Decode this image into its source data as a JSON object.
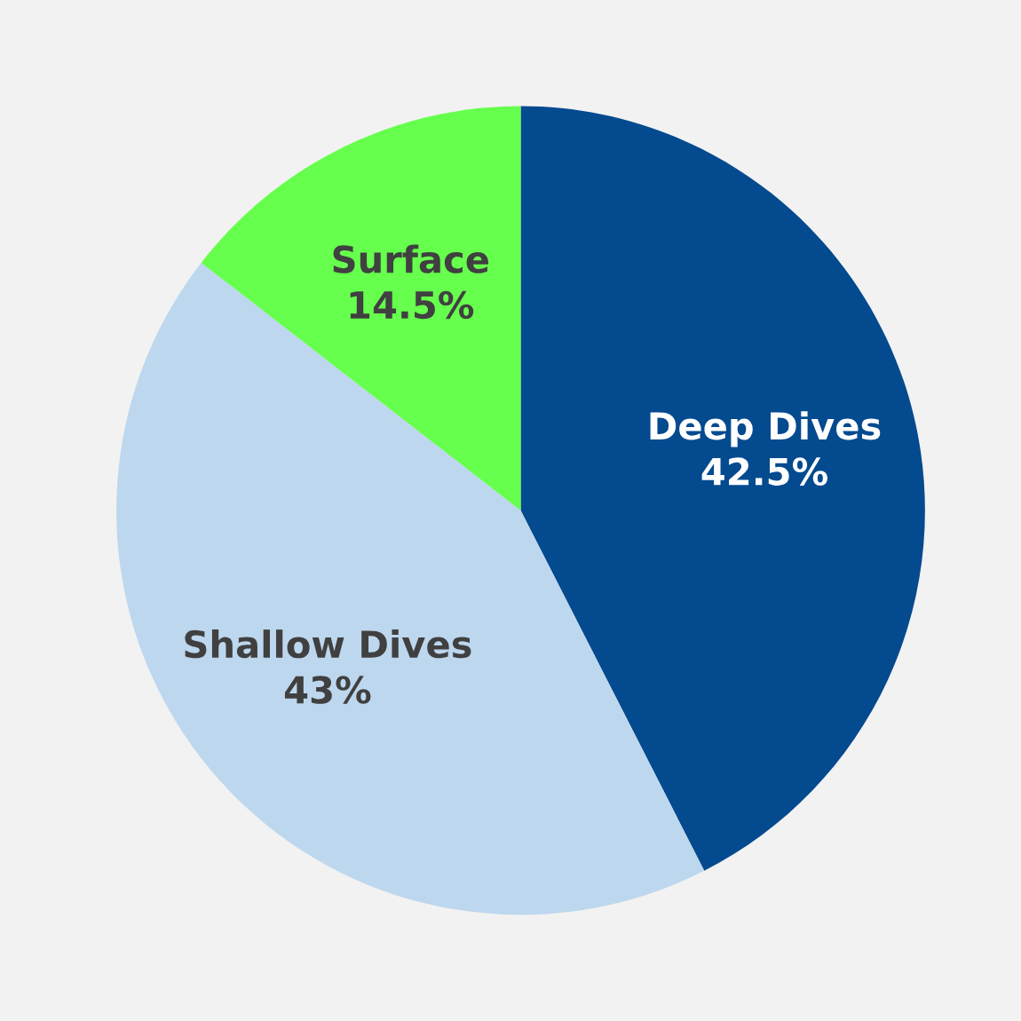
{
  "chart_data": {
    "type": "pie",
    "categories": [
      "Deep Dives",
      "Shallow Dives",
      "Surface"
    ],
    "values": [
      42.5,
      43,
      14.5
    ],
    "value_labels": [
      "42.5%",
      "43%",
      "14.5%"
    ],
    "colors": [
      "#044a8f",
      "#bdd7ee",
      "#66ff4d"
    ],
    "legend": false
  }
}
